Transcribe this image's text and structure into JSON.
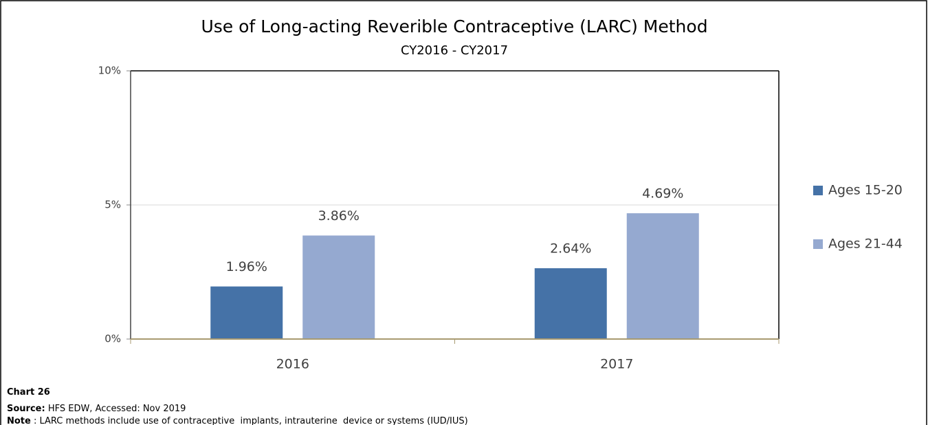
{
  "chart_data": {
    "type": "bar",
    "title": "Use of Long-acting Reverible Contraceptive (LARC) Method",
    "subtitle": "CY2016 - CY2017",
    "categories": [
      "2016",
      "2017"
    ],
    "series": [
      {
        "name": "Ages 15-20",
        "color": "#4572a7",
        "values": [
          1.96,
          2.64
        ],
        "value_labels": [
          "1.96%",
          "2.64%"
        ]
      },
      {
        "name": "Ages 21-44",
        "color": "#95a9d0",
        "values": [
          3.86,
          4.69
        ],
        "value_labels": [
          "3.86%",
          "4.69%"
        ]
      }
    ],
    "ylim": [
      0,
      10
    ],
    "yticks": [
      {
        "value": 0,
        "label": "0%"
      },
      {
        "value": 5,
        "label": "5%"
      },
      {
        "value": 10,
        "label": "10%"
      }
    ],
    "grid": true,
    "legend": "right"
  },
  "footer": {
    "chart_label": "Chart 26",
    "source_label": "Source:",
    "source_text": " HFS EDW, Accessed: Nov 2019",
    "note_label": "Note",
    "note_text": " : LARC methods include use of contraceptive  implants, intrauterine  device or systems (IUD/IUS)"
  }
}
